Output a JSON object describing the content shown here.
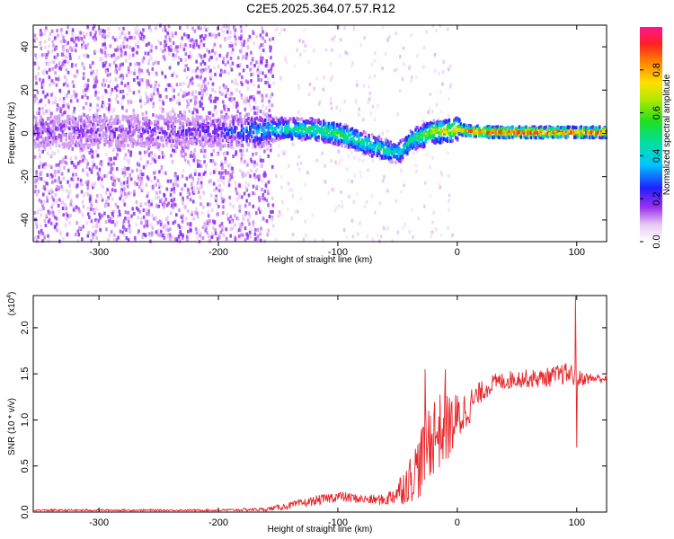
{
  "page": {
    "title": "C2E5.2025.364.07.57.R12"
  },
  "colors": {
    "snr_line": "#e8262a",
    "axis": "#000000",
    "spectro_bg": "#ffffff"
  },
  "chart_data": [
    {
      "type": "heatmap",
      "title": "C2E5.2025.364.07.57.R12",
      "xlabel": "Height of straight line (km)",
      "ylabel": "Frequency (Hz)",
      "xlim": [
        -355,
        125
      ],
      "ylim": [
        -50,
        50
      ],
      "xticks": [
        -300,
        -200,
        -100,
        0,
        100
      ],
      "yticks": [
        -40,
        -20,
        0,
        20,
        40
      ],
      "colorbar": {
        "label": "Normalized spectral amplitude",
        "range": [
          0,
          1
        ],
        "ticks": [
          "0.0",
          "0.2",
          "0.4",
          "0.6",
          "0.8"
        ],
        "colormap": "rainbow (white-purple-blue-cyan-green-yellow-red-magenta)"
      },
      "ridge": {
        "description": "Dominant frequency ridge (Hz) vs height (km)",
        "x": [
          -355,
          -300,
          -250,
          -200,
          -170,
          -150,
          -130,
          -110,
          -95,
          -80,
          -70,
          -60,
          -50,
          -45,
          -40,
          -30,
          -20,
          -10,
          0,
          10,
          30,
          60,
          90,
          125
        ],
        "y": [
          1,
          1,
          1,
          1,
          1,
          2,
          2,
          1,
          -1,
          -4,
          -6,
          -8,
          -9,
          -7,
          -3,
          -1,
          1,
          1,
          2,
          1,
          0.5,
          0.5,
          0.5,
          0.5
        ],
        "amplitude": [
          0.15,
          0.15,
          0.18,
          0.2,
          0.35,
          0.45,
          0.5,
          0.55,
          0.55,
          0.5,
          0.45,
          0.5,
          0.4,
          0.45,
          0.5,
          0.6,
          0.7,
          0.75,
          0.8,
          0.9,
          0.95,
          0.95,
          0.95,
          0.9
        ]
      }
    },
    {
      "type": "line",
      "xlabel": "Height of straight line (km)",
      "ylabel": "SNR (10 * v/v)",
      "ylabel_multiplier": "(x10",
      "ylabel_multiplier_exp": "4",
      "ylabel_multiplier_close": ")",
      "xlim": [
        -355,
        125
      ],
      "ylim": [
        0,
        2.35
      ],
      "xticks": [
        -300,
        -200,
        -100,
        0,
        100
      ],
      "yticks": [
        "0.0",
        "0.5",
        "1.0",
        "1.5",
        "2.0"
      ],
      "series": [
        {
          "x": [
            -355,
            -300,
            -250,
            -200,
            -160,
            -140,
            -120,
            -100,
            -80,
            -60,
            -50,
            -40,
            -30,
            -25,
            -20,
            -10,
            0,
            10,
            20,
            30,
            50,
            70,
            90,
            95,
            100,
            110,
            125
          ],
          "y": [
            0.02,
            0.02,
            0.02,
            0.02,
            0.03,
            0.07,
            0.12,
            0.17,
            0.14,
            0.13,
            0.22,
            0.35,
            0.55,
            0.75,
            0.85,
            0.9,
            1.0,
            1.15,
            1.3,
            1.4,
            1.45,
            1.45,
            1.5,
            1.5,
            1.45,
            1.45,
            1.45
          ],
          "noise_amplitude": [
            0.01,
            0.01,
            0.01,
            0.01,
            0.02,
            0.04,
            0.05,
            0.06,
            0.05,
            0.06,
            0.15,
            0.25,
            0.4,
            0.45,
            0.45,
            0.4,
            0.3,
            0.2,
            0.12,
            0.1,
            0.1,
            0.1,
            0.12,
            0.12,
            0.1,
            0.06,
            0.05
          ],
          "spikes": [
            {
              "x": 99,
              "y": 2.35
            },
            {
              "x": 100,
              "y": 0.7
            },
            {
              "x": -27,
              "y": 1.55
            },
            {
              "x": -10,
              "y": 1.55
            }
          ]
        }
      ]
    }
  ]
}
